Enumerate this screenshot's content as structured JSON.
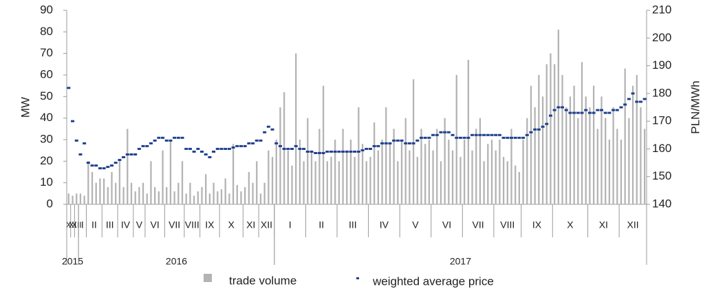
{
  "chart_data": {
    "type": "bar_dot",
    "y_label": "MW",
    "y2_label": "PLN/MWh",
    "ylim": [
      0,
      90
    ],
    "yticks": [
      0,
      10,
      20,
      30,
      40,
      50,
      60,
      70,
      80,
      90
    ],
    "y2lim": [
      140,
      210
    ],
    "y2ticks": [
      140,
      150,
      160,
      170,
      180,
      190,
      200,
      210
    ],
    "series": [
      {
        "name": "trade volume",
        "color": "#b3b3b3"
      },
      {
        "name": "weighted average price",
        "color": "#1f3f8f",
        "axis": "y2"
      }
    ],
    "years": [
      {
        "label": "2015",
        "months": [
          {
            "label": "X",
            "volume": [
              5
            ],
            "price": [
              182
            ]
          },
          {
            "label": "XI",
            "volume": [
              4
            ],
            "price": [
              170
            ]
          },
          {
            "label": "XII",
            "volume": [
              5
            ],
            "price": [
              163
            ]
          }
        ]
      },
      {
        "label": "2016",
        "months": [
          {
            "label": "I",
            "volume": [
              5,
              4
            ],
            "price": [
              158,
              162
            ]
          },
          {
            "label": "II",
            "volume": [
              20,
              15,
              10,
              12
            ],
            "price": [
              155,
              154,
              154,
              153
            ]
          },
          {
            "label": "III",
            "volume": [
              12,
              8,
              15,
              10
            ],
            "price": [
              153,
              153.5,
              154,
              155
            ]
          },
          {
            "label": "IV",
            "volume": [
              20,
              8,
              35,
              10
            ],
            "price": [
              156,
              157,
              158,
              158
            ]
          },
          {
            "label": "V",
            "volume": [
              6,
              8,
              10
            ],
            "price": [
              158,
              160,
              161
            ]
          },
          {
            "label": "VI",
            "volume": [
              5,
              20,
              8,
              6,
              25
            ],
            "price": [
              161,
              162,
              163,
              164,
              164
            ]
          },
          {
            "label": "VII",
            "volume": [
              8,
              30,
              6,
              10,
              20
            ],
            "price": [
              163,
              163,
              164,
              164,
              164
            ]
          },
          {
            "label": "VIII",
            "volume": [
              5,
              10,
              4,
              6
            ],
            "price": [
              160,
              160,
              159,
              160
            ]
          },
          {
            "label": "IX",
            "volume": [
              8,
              14,
              5,
              10,
              6
            ],
            "price": [
              159,
              158,
              157,
              159,
              160
            ]
          },
          {
            "label": "X",
            "volume": [
              7,
              12,
              5,
              28,
              9,
              6
            ],
            "price": [
              160,
              160,
              160,
              160.5,
              161,
              161
            ]
          },
          {
            "label": "XI",
            "volume": [
              8,
              15,
              10,
              20
            ],
            "price": [
              161,
              162,
              162,
              163
            ]
          },
          {
            "label": "XII",
            "volume": [
              5,
              10,
              25,
              22
            ],
            "price": [
              163,
              166,
              168,
              167
            ]
          }
        ]
      },
      {
        "label": "2017",
        "months": [
          {
            "label": "I",
            "volume": [
              30,
              45,
              52,
              25,
              18,
              70,
              30,
              20
            ],
            "price": [
              162,
              161,
              160,
              160,
              160,
              161,
              160,
              160
            ]
          },
          {
            "label": "II",
            "volume": [
              40,
              25,
              20,
              35,
              55,
              20,
              22,
              30
            ],
            "price": [
              159,
              159,
              158.5,
              158.5,
              158.5,
              159,
              159,
              159
            ]
          },
          {
            "label": "III",
            "volume": [
              20,
              35,
              25,
              30,
              22,
              45,
              28,
              20
            ],
            "price": [
              159,
              159,
              159,
              159,
              159,
              159,
              159.5,
              160
            ]
          },
          {
            "label": "IV",
            "volume": [
              22,
              38,
              25,
              30,
              45,
              28,
              35,
              20
            ],
            "price": [
              160,
              161,
              161,
              162,
              162,
              162,
              163,
              163
            ]
          },
          {
            "label": "V",
            "volume": [
              30,
              40,
              25,
              58,
              22,
              35,
              28,
              30
            ],
            "price": [
              163,
              162,
              162,
              162,
              163,
              164,
              164,
              164
            ]
          },
          {
            "label": "VI",
            "volume": [
              25,
              35,
              20,
              40,
              30,
              25,
              60,
              22
            ],
            "price": [
              165,
              165,
              166,
              166,
              166,
              165,
              164,
              164
            ]
          },
          {
            "label": "VII",
            "volume": [
              30,
              67,
              25,
              35,
              40,
              20,
              28,
              30
            ],
            "price": [
              164,
              164,
              165,
              165,
              165,
              165,
              165,
              165
            ]
          },
          {
            "label": "VIII",
            "volume": [
              25,
              30,
              22,
              20,
              35,
              18,
              15
            ],
            "price": [
              165,
              165,
              164,
              164,
              164,
              164,
              164
            ]
          },
          {
            "label": "IX",
            "volume": [
              30,
              40,
              55,
              45,
              60,
              50,
              65,
              70
            ],
            "price": [
              164,
              165,
              166,
              167,
              167,
              168,
              169,
              172
            ]
          },
          {
            "label": "X",
            "volume": [
              65,
              81,
              60,
              45,
              50,
              55,
              40,
              66,
              50
            ],
            "price": [
              174,
              175,
              175,
              174,
              173,
              173,
              173,
              173,
              174
            ]
          },
          {
            "label": "XI",
            "volume": [
              45,
              55,
              35,
              50,
              40,
              30,
              45,
              35
            ],
            "price": [
              173,
              173,
              174,
              174,
              173,
              173,
              174,
              174
            ]
          },
          {
            "label": "XII",
            "volume": [
              30,
              63,
              40,
              55,
              60,
              45,
              35
            ],
            "price": [
              175,
              176,
              178,
              180,
              177,
              177,
              178
            ]
          }
        ]
      }
    ]
  }
}
